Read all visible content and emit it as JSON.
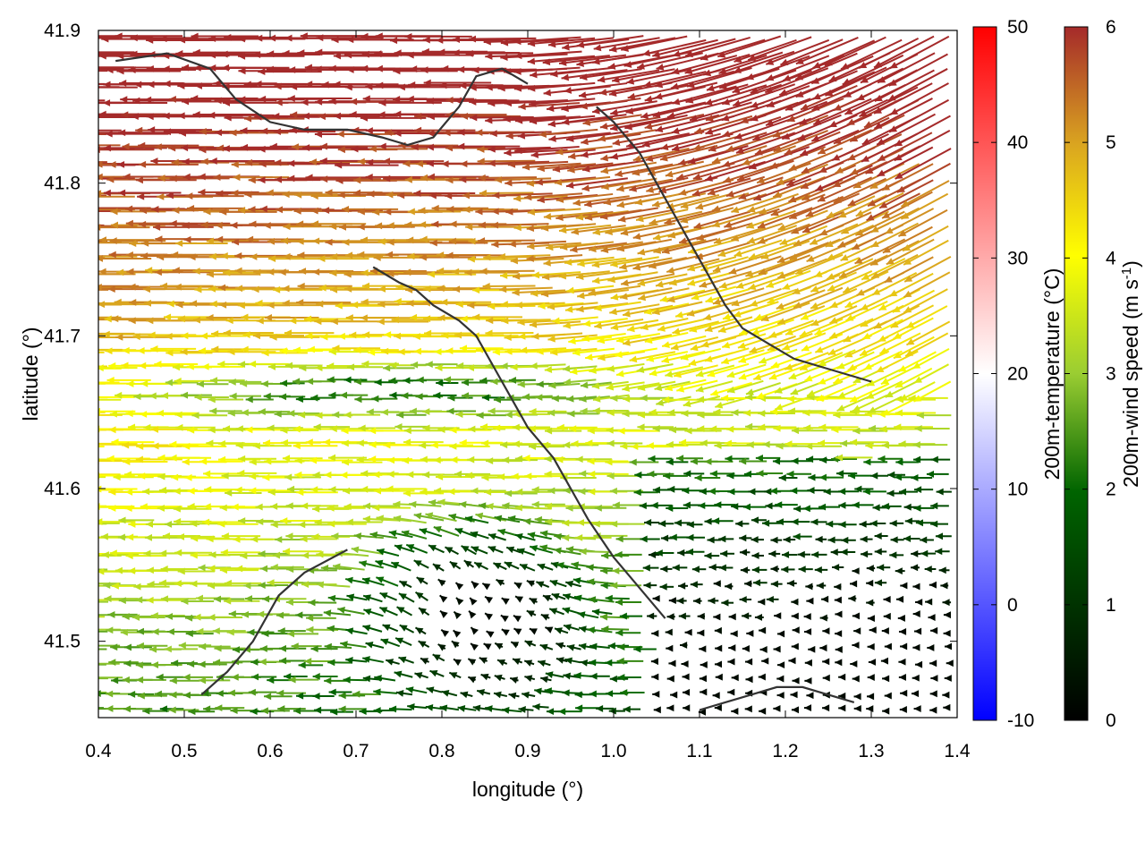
{
  "chart_data": {
    "type": "vector-field",
    "xlabel": "longitude (°)",
    "ylabel": "latitude (°)",
    "xlim": [
      0.4,
      1.4
    ],
    "ylim": [
      41.45,
      41.9
    ],
    "xticks": [
      "0.4",
      "0.5",
      "0.6",
      "0.7",
      "0.8",
      "0.9",
      "1.0",
      "1.1",
      "1.2",
      "1.3",
      "1.4"
    ],
    "xtick_values": [
      0.4,
      0.5,
      0.6,
      0.7,
      0.8,
      0.9,
      1.0,
      1.1,
      1.2,
      1.3,
      1.4
    ],
    "yticks": [
      "41.5",
      "41.6",
      "41.7",
      "41.8",
      "41.9"
    ],
    "ytick_values": [
      41.5,
      41.6,
      41.7,
      41.8,
      41.9
    ],
    "background_field": "white (~20 °C) across domain",
    "colorbars": [
      {
        "name": "temperature",
        "label": "200m-temperature (°C)",
        "range": [
          -10,
          50
        ],
        "ticks": [
          "-10",
          "0",
          "10",
          "20",
          "30",
          "40",
          "50"
        ],
        "tick_values": [
          -10,
          0,
          10,
          20,
          30,
          40,
          50
        ],
        "colors": [
          "#0000ff",
          "#ffffff",
          "#ff0000"
        ]
      },
      {
        "name": "wind",
        "label_main": "200m-wind speed (m s",
        "label_sup": "-1",
        "label_end": ")",
        "range": [
          0,
          6
        ],
        "ticks": [
          "0",
          "1",
          "2",
          "3",
          "4",
          "5",
          "6"
        ],
        "tick_values": [
          0,
          1,
          2,
          3,
          4,
          5,
          6
        ],
        "colors": [
          "#000000",
          "#006400",
          "#9acd32",
          "#ffff00",
          "#daa520",
          "#a52a2a"
        ]
      }
    ],
    "coastlines": [
      [
        [
          0.42,
          41.88
        ],
        [
          0.48,
          41.885
        ],
        [
          0.53,
          41.875
        ],
        [
          0.56,
          41.855
        ],
        [
          0.6,
          41.84
        ],
        [
          0.64,
          41.835
        ],
        [
          0.69,
          41.835
        ],
        [
          0.73,
          41.83
        ],
        [
          0.76,
          41.825
        ],
        [
          0.79,
          41.83
        ],
        [
          0.82,
          41.85
        ],
        [
          0.84,
          41.87
        ],
        [
          0.87,
          41.875
        ],
        [
          0.9,
          41.865
        ]
      ],
      [
        [
          0.52,
          41.465
        ],
        [
          0.55,
          41.48
        ],
        [
          0.58,
          41.5
        ],
        [
          0.61,
          41.53
        ],
        [
          0.64,
          41.545
        ],
        [
          0.69,
          41.56
        ]
      ],
      [
        [
          0.72,
          41.745
        ],
        [
          0.75,
          41.735
        ],
        [
          0.77,
          41.73
        ],
        [
          0.79,
          41.72
        ],
        [
          0.82,
          41.71
        ],
        [
          0.84,
          41.7
        ],
        [
          0.86,
          41.68
        ],
        [
          0.88,
          41.66
        ],
        [
          0.9,
          41.64
        ],
        [
          0.93,
          41.62
        ],
        [
          0.95,
          41.6
        ],
        [
          0.97,
          41.58
        ],
        [
          1.0,
          41.555
        ],
        [
          1.03,
          41.535
        ],
        [
          1.06,
          41.515
        ]
      ],
      [
        [
          0.98,
          41.85
        ],
        [
          1.0,
          41.84
        ],
        [
          1.03,
          41.82
        ],
        [
          1.05,
          41.8
        ],
        [
          1.07,
          41.78
        ],
        [
          1.09,
          41.76
        ],
        [
          1.11,
          41.74
        ],
        [
          1.13,
          41.72
        ],
        [
          1.15,
          41.705
        ],
        [
          1.18,
          41.695
        ],
        [
          1.21,
          41.685
        ],
        [
          1.24,
          41.68
        ],
        [
          1.27,
          41.675
        ],
        [
          1.3,
          41.67
        ]
      ],
      [
        [
          1.1,
          41.455
        ],
        [
          1.13,
          41.46
        ],
        [
          1.16,
          41.465
        ],
        [
          1.19,
          41.47
        ],
        [
          1.22,
          41.47
        ],
        [
          1.25,
          41.465
        ],
        [
          1.28,
          41.46
        ]
      ]
    ]
  }
}
